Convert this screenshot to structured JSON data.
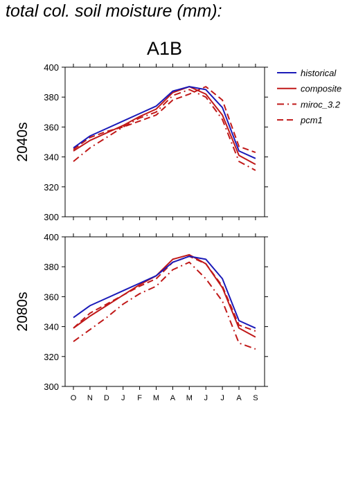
{
  "title": "total col. soil moisture (mm):",
  "scenario": "A1B",
  "colors": {
    "historical": "#1a1ab8",
    "composite": "#c01818",
    "miroc_3.2": "#c01818",
    "pcm1": "#c01818"
  },
  "legend": [
    {
      "name": "historical",
      "color": "#1a1ab8",
      "dash": "solid"
    },
    {
      "name": "composite",
      "color": "#c01818",
      "dash": "solid"
    },
    {
      "name": "miroc_3.2",
      "color": "#c01818",
      "dash": "dashdot"
    },
    {
      "name": "pcm1",
      "color": "#c01818",
      "dash": "dashed"
    }
  ],
  "chart_data": [
    {
      "type": "line",
      "row_label": "2040s",
      "categories": [
        "O",
        "N",
        "D",
        "J",
        "F",
        "M",
        "A",
        "M",
        "J",
        "J",
        "A",
        "S"
      ],
      "ylim": [
        300,
        400
      ],
      "yticks": [
        300,
        320,
        340,
        360,
        380,
        400
      ],
      "series": [
        {
          "name": "historical",
          "values": [
            346,
            354,
            359,
            364,
            369,
            374,
            384,
            387,
            385,
            373,
            344,
            339
          ]
        },
        {
          "name": "composite",
          "values": [
            344,
            351,
            356,
            361,
            367,
            372,
            383,
            387,
            382,
            368,
            341,
            335
          ]
        },
        {
          "name": "miroc_3.2",
          "values": [
            337,
            346,
            353,
            360,
            366,
            370,
            381,
            385,
            380,
            365,
            337,
            331
          ]
        },
        {
          "name": "pcm1",
          "values": [
            345,
            353,
            357,
            360,
            364,
            368,
            378,
            382,
            387,
            378,
            347,
            343
          ]
        }
      ]
    },
    {
      "type": "line",
      "row_label": "2080s",
      "categories": [
        "O",
        "N",
        "D",
        "J",
        "F",
        "M",
        "A",
        "M",
        "J",
        "J",
        "A",
        "S"
      ],
      "ylim": [
        300,
        400
      ],
      "yticks": [
        300,
        320,
        340,
        360,
        380,
        400
      ],
      "series": [
        {
          "name": "historical",
          "values": [
            346,
            354,
            359,
            364,
            369,
            374,
            383,
            387,
            385,
            372,
            344,
            339
          ]
        },
        {
          "name": "composite",
          "values": [
            339,
            347,
            354,
            361,
            368,
            374,
            385,
            388,
            382,
            366,
            339,
            333
          ]
        },
        {
          "name": "miroc_3.2",
          "values": [
            330,
            338,
            346,
            355,
            362,
            367,
            378,
            383,
            372,
            357,
            329,
            325
          ]
        },
        {
          "name": "pcm1",
          "values": [
            339,
            349,
            355,
            361,
            367,
            372,
            383,
            387,
            382,
            367,
            341,
            337
          ]
        }
      ]
    }
  ]
}
